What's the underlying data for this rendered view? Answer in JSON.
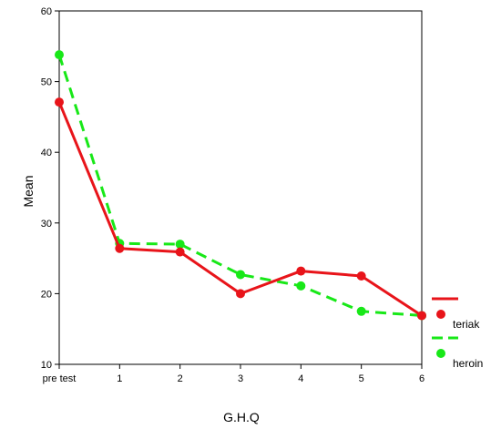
{
  "chart_data": {
    "type": "line",
    "categories": [
      "pre test",
      "1",
      "2",
      "3",
      "4",
      "5",
      "6"
    ],
    "xlabel": "G.H.Q",
    "ylabel": "Mean",
    "ylim": [
      10,
      60
    ],
    "yticks": [
      10,
      20,
      30,
      40,
      50,
      60
    ],
    "grid": false,
    "legend_position": "right",
    "series": [
      {
        "name": "teriak",
        "color": "#e8141a",
        "style": "solid",
        "values": [
          47.1,
          26.4,
          25.9,
          20.0,
          23.2,
          22.5,
          16.9
        ]
      },
      {
        "name": "heroin",
        "color": "#18e818",
        "style": "dashed",
        "values": [
          53.8,
          27.1,
          27.0,
          22.7,
          21.1,
          17.5,
          16.9
        ]
      }
    ]
  }
}
